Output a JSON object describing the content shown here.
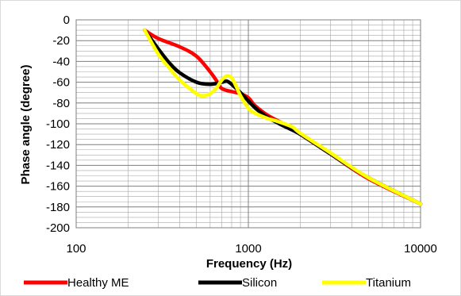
{
  "chart_data": {
    "type": "line",
    "title": "",
    "xlabel": "Frequency (Hz)",
    "ylabel": "Phase angle (degree)",
    "xscale": "log",
    "xlim": [
      100,
      10000
    ],
    "ylim": [
      -200,
      0
    ],
    "x_ticks": [
      100,
      1000,
      10000
    ],
    "x_tick_labels": [
      "100",
      "1000",
      "10000"
    ],
    "y_ticks": [
      0,
      -20,
      -40,
      -60,
      -80,
      -100,
      -120,
      -140,
      -160,
      -180,
      -200
    ],
    "y_tick_labels": [
      "0",
      "-20",
      "-40",
      "-60",
      "-80",
      "-100",
      "-120",
      "-140",
      "-160",
      "-180",
      "-200"
    ],
    "grid": "major and minor",
    "legend_position": "bottom",
    "series": [
      {
        "name": "Healthy ME",
        "color": "#ff0000",
        "x": [
          250,
          300,
          400,
          500,
          600,
          650,
          700,
          800,
          900,
          1000,
          1100,
          1300,
          1600,
          2000,
          3000,
          5000,
          10000
        ],
        "y": [
          -10,
          -18,
          -26,
          -35,
          -50,
          -58,
          -66,
          -69,
          -71,
          -75,
          -83,
          -92,
          -100,
          -110,
          -129,
          -153,
          -177
        ]
      },
      {
        "name": "Silicon",
        "color": "#000000",
        "x": [
          250,
          300,
          350,
          400,
          500,
          600,
          700,
          750,
          800,
          900,
          1000,
          1100,
          1300,
          1600,
          2000,
          3000,
          5000,
          10000
        ],
        "y": [
          -10,
          -28,
          -42,
          -51,
          -60,
          -62,
          -60,
          -59,
          -62,
          -70,
          -78,
          -85,
          -94,
          -102,
          -110,
          -129,
          -152,
          -177
        ]
      },
      {
        "name": "Titanium",
        "color": "#ffff00",
        "x": [
          250,
          300,
          350,
          400,
          500,
          550,
          600,
          650,
          700,
          750,
          800,
          850,
          900,
          1000,
          1100,
          1300,
          1500,
          1800,
          2000,
          3000,
          5000,
          10000
        ],
        "y": [
          -10,
          -33,
          -47,
          -58,
          -71,
          -73,
          -71,
          -66,
          -58,
          -54,
          -56,
          -64,
          -73,
          -85,
          -90,
          -95,
          -98,
          -103,
          -109,
          -128,
          -152,
          -177
        ]
      }
    ]
  }
}
